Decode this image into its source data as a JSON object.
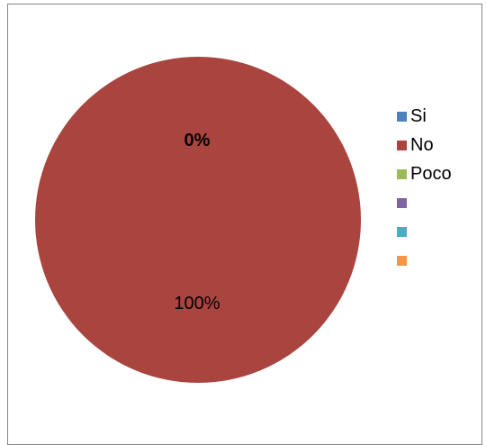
{
  "chart_data": {
    "type": "pie",
    "slices": [
      {
        "label": "Si",
        "value": 0,
        "color": "#4F81BD"
      },
      {
        "label": "No",
        "value": 100,
        "color": "#A9443F"
      },
      {
        "label": "Poco",
        "value": 0,
        "color": "#9BBB59"
      },
      {
        "label": "",
        "value": 0,
        "color": "#8064A2"
      },
      {
        "label": "",
        "value": 0,
        "color": "#4BACC6"
      },
      {
        "label": "",
        "value": 0,
        "color": "#F79646"
      }
    ],
    "data_labels": [
      "0%",
      "100%"
    ],
    "legend_position": "right"
  }
}
